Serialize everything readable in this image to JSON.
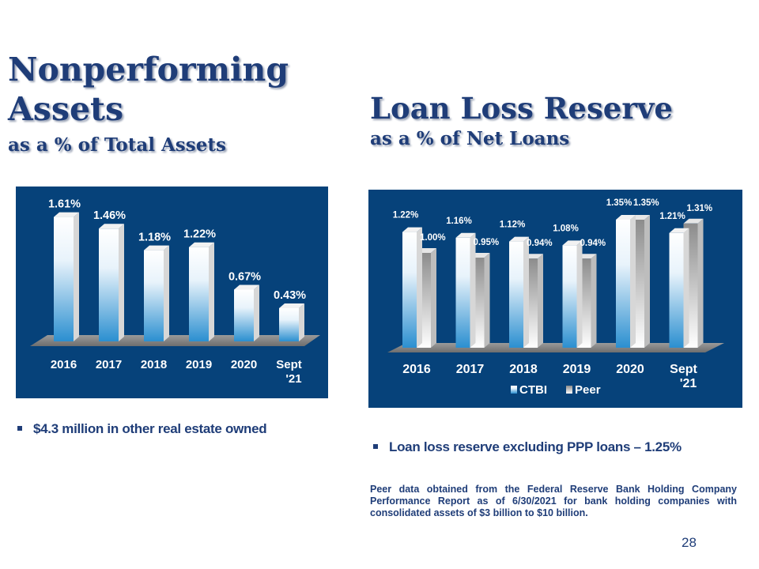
{
  "nonperforming": {
    "title_line1": "Nonperforming",
    "title_line2": "Assets",
    "subtitle": "as a % of Total Assets",
    "bullet": "$4.3 million in other real estate owned"
  },
  "loan_loss": {
    "title": "Loan Loss Reserve",
    "subtitle": "as a % of Net Loans",
    "bullet": "Loan loss reserve excluding PPP loans – 1.25%",
    "footnote": "Peer data obtained from the Federal Reserve Bank Holding Company Performance Report as of 6/30/2021 for bank holding companies with consolidated assets of $3 billion to $10 billion."
  },
  "page_number": "28",
  "colors": {
    "panel": "#06427a",
    "title": "#1f3d78",
    "ctbi_top": "#ffffff",
    "ctbi_bottom": "#2b8fd0",
    "peer_light": "#ffffff",
    "peer_dark": "#8c8c8c"
  },
  "chart_data": [
    {
      "id": "nonperforming",
      "type": "bar",
      "categories": [
        "2016",
        "2017",
        "2018",
        "2019",
        "2020",
        "Sept\n'21"
      ],
      "series": [
        {
          "values": [
            1.61,
            1.46,
            1.18,
            1.22,
            0.67,
            0.43
          ],
          "labels": [
            "1.61%",
            "1.46%",
            "1.18%",
            "1.22%",
            "0.67%",
            "0.43%"
          ]
        }
      ],
      "ylim": [
        0,
        1.8
      ],
      "legend": "none",
      "grid": false
    },
    {
      "id": "loan_loss",
      "type": "bar",
      "categories": [
        "2016",
        "2017",
        "2018",
        "2019",
        "2020",
        "Sept\n'21"
      ],
      "series": [
        {
          "name": "CTBI",
          "values": [
            1.22,
            1.16,
            1.12,
            1.08,
            1.35,
            1.21
          ],
          "labels": [
            "1.22%",
            "1.16%",
            "1.12%",
            "1.08%",
            "1.35%",
            "1.21%"
          ]
        },
        {
          "name": "Peer",
          "values": [
            1.0,
            0.95,
            0.94,
            0.94,
            1.35,
            1.31
          ],
          "labels": [
            "1.00%",
            "0.95%",
            "0.94%",
            "0.94%",
            "1.35%",
            "1.31%"
          ]
        }
      ],
      "ylim": [
        0,
        1.5
      ],
      "legend": "bottom",
      "grid": false
    }
  ]
}
